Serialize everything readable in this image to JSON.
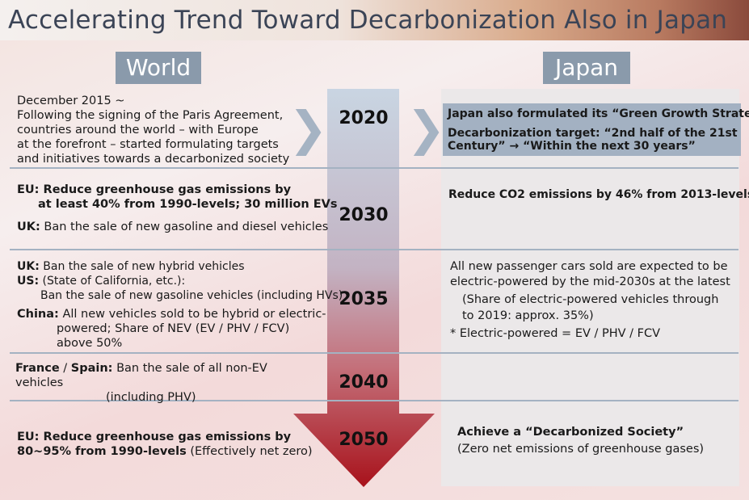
{
  "title": "Accelerating Trend Toward Decarbonization Also in Japan",
  "columns": {
    "world": "World",
    "japan": "Japan"
  },
  "years": [
    "2020",
    "2030",
    "2035",
    "2040",
    "2050"
  ],
  "world": {
    "r2020": [
      "December 2015 ~",
      "Following the signing of the Paris Agreement,",
      "countries around the world – with Europe",
      "at the forefront – started formulating targets",
      "and initiatives towards a decarbonized society"
    ],
    "r2030": {
      "eu_line1": "EU: Reduce greenhouse gas emissions by",
      "eu_line2": "at least 40% from 1990-levels; 30 million EVs",
      "uk_label": "UK:",
      "uk_text": " Ban the sale of new gasoline and diesel vehicles"
    },
    "r2035": {
      "uk_label": "UK:",
      "uk_text": " Ban the sale of new hybrid vehicles",
      "us_label": "US:",
      "us_text": " (State of California, etc.):",
      "us_line2": "Ban the sale of new gasoline vehicles (including HVs)",
      "china_label": "China:",
      "china_line1": " All new vehicles sold to be hybrid or electric-",
      "china_line2": "powered; Share of NEV (EV / PHV / FCV)",
      "china_line3": "above 50%"
    },
    "r2040": {
      "label": "France",
      "sep": " / ",
      "label2": "Spain:",
      "text": " Ban the sale of all non-EV",
      "line2": "vehicles",
      "line3": "(including PHV)"
    },
    "r2050": {
      "line1": "EU: Reduce greenhouse gas emissions by",
      "line2_bold": "80~95% from 1990-levels",
      "line2_rest": " (Effectively net zero)"
    }
  },
  "japan": {
    "r2020": {
      "line1": "Japan also formulated its “Green Growth Strategy”",
      "line2": "Decarbonization target: “2nd half of the 21st",
      "line3": "Century” → “Within the next 30 years”"
    },
    "r2030": "Reduce CO2 emissions by 46% from 2013-levels",
    "r2035": [
      "All new passenger cars sold are expected to be",
      "electric-powered by the mid-2030s at the latest",
      "(Share of electric-powered vehicles through",
      "to 2019: approx. 35%)",
      "* Electric-powered = EV / PHV / FCV"
    ],
    "r2050": {
      "line1": "Achieve a “Decarbonized Society”",
      "line2": "(Zero net emissions of greenhouse gases)"
    }
  },
  "colors": {
    "header_bg": "#8a9aab",
    "arrow_top": "#c9d5e2",
    "arrow_bottom": "#a8121b",
    "japan_highlight": "#a3b1c2",
    "divider": "#a4b2c2"
  }
}
